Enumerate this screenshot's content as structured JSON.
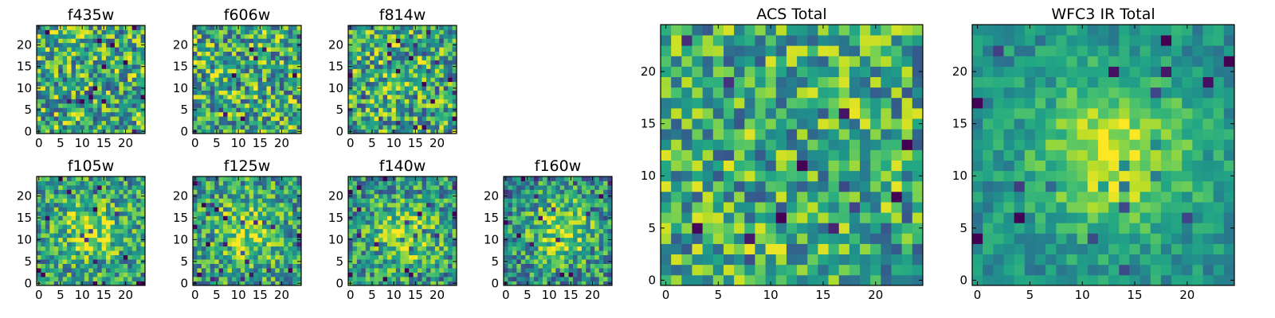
{
  "chart_data": {
    "type": "heatmap",
    "colormap": "viridis",
    "panels": [
      {
        "id": "f435w",
        "title": "f435w",
        "grid": 25,
        "xticks": [
          0,
          5,
          10,
          15,
          20
        ],
        "yticks": [
          0,
          5,
          10,
          15,
          20
        ],
        "seed": 11,
        "blob": {
          "cx": 12,
          "cy": 12,
          "sigma": 4,
          "amp": 0.0
        },
        "noise": 0.55,
        "base": 0.62
      },
      {
        "id": "f606w",
        "title": "f606w",
        "grid": 25,
        "xticks": [
          0,
          5,
          10,
          15,
          20
        ],
        "yticks": [
          0,
          5,
          10,
          15,
          20
        ],
        "seed": 23,
        "blob": {
          "cx": 12,
          "cy": 12,
          "sigma": 4,
          "amp": 0.0
        },
        "noise": 0.55,
        "base": 0.62
      },
      {
        "id": "f814w",
        "title": "f814w",
        "grid": 25,
        "xticks": [
          0,
          5,
          10,
          15,
          20
        ],
        "yticks": [
          0,
          5,
          10,
          15,
          20
        ],
        "seed": 37,
        "blob": {
          "cx": 11,
          "cy": 12,
          "sigma": 3,
          "amp": 0.15
        },
        "noise": 0.55,
        "base": 0.6
      },
      {
        "id": "f105w",
        "title": "f105w",
        "grid": 25,
        "xticks": [
          0,
          5,
          10,
          15,
          20
        ],
        "yticks": [
          0,
          5,
          10,
          15,
          20
        ],
        "seed": 41,
        "blob": {
          "cx": 12,
          "cy": 12,
          "sigma": 5,
          "amp": 0.3
        },
        "noise": 0.45,
        "base": 0.55
      },
      {
        "id": "f125w",
        "title": "f125w",
        "grid": 25,
        "xticks": [
          0,
          5,
          10,
          15,
          20
        ],
        "yticks": [
          0,
          5,
          10,
          15,
          20
        ],
        "seed": 53,
        "blob": {
          "cx": 12,
          "cy": 12,
          "sigma": 5,
          "amp": 0.3
        },
        "noise": 0.45,
        "base": 0.55
      },
      {
        "id": "f140w",
        "title": "f140w",
        "grid": 25,
        "xticks": [
          0,
          5,
          10,
          15,
          20
        ],
        "yticks": [
          0,
          5,
          10,
          15,
          20
        ],
        "seed": 67,
        "blob": {
          "cx": 13,
          "cy": 11,
          "sigma": 5,
          "amp": 0.35
        },
        "noise": 0.45,
        "base": 0.52
      },
      {
        "id": "f160w",
        "title": "f160w",
        "grid": 25,
        "xticks": [
          0,
          5,
          10,
          15,
          20
        ],
        "yticks": [
          0,
          5,
          10,
          15,
          20
        ],
        "seed": 79,
        "blob": {
          "cx": 13,
          "cy": 12,
          "sigma": 5,
          "amp": 0.35
        },
        "noise": 0.45,
        "base": 0.5
      },
      {
        "id": "acs-total",
        "title": "ACS Total",
        "grid": 25,
        "xticks": [
          0,
          5,
          10,
          15,
          20
        ],
        "yticks": [
          0,
          5,
          10,
          15,
          20
        ],
        "seed": 97,
        "blob": {
          "cx": 12,
          "cy": 12,
          "sigma": 4,
          "amp": 0.0
        },
        "noise": 0.5,
        "base": 0.62
      },
      {
        "id": "wfc3-ir-total",
        "title": "WFC3 IR Total",
        "grid": 25,
        "xticks": [
          0,
          5,
          10,
          15,
          20
        ],
        "yticks": [
          0,
          5,
          10,
          15,
          20
        ],
        "seed": 113,
        "blob": {
          "cx": 13,
          "cy": 12,
          "sigma": 5,
          "amp": 0.45
        },
        "noise": 0.22,
        "base": 0.5
      }
    ]
  }
}
